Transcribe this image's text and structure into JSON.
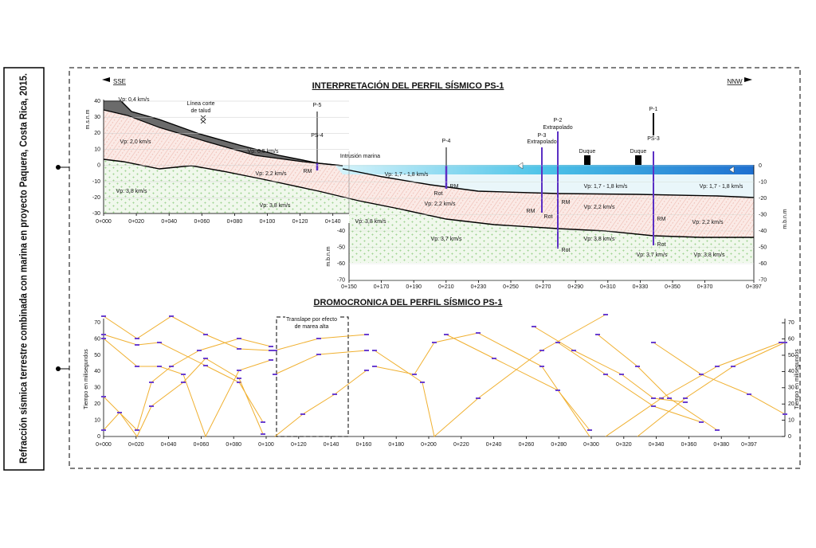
{
  "caption": "Refracción sísmica terrestre combinada con marina en proyecto Paquera, Costa Rica, 2015.",
  "profile": {
    "title": "INTERPRETACIÓN DEL PERFIL SÍSMICO PS-1",
    "direction_left": "SSE",
    "direction_right": "NNW",
    "y_label_land": "m.s.n.m",
    "y_label_marine_right": "m.b.n.m",
    "y_label_marine_left": "m.b.n.m",
    "land_yticks": [
      "40",
      "30",
      "20",
      "10",
      "0",
      "-10",
      "-20",
      "-30"
    ],
    "land_xticks": [
      "0+000",
      "0+020",
      "0+040",
      "0+060",
      "0+080",
      "0+100",
      "0+120",
      "0+140"
    ],
    "marine_yticks_right": [
      "0",
      "-10",
      "-20",
      "-30",
      "-40",
      "-50",
      "-60",
      "-70"
    ],
    "marine_yticks_left": [
      "-40",
      "-50",
      "-60",
      "-70"
    ],
    "marine_xticks": [
      "0+150",
      "0+170",
      "0+190",
      "0+210",
      "0+230",
      "0+250",
      "0+270",
      "0+290",
      "0+310",
      "0+330",
      "0+350",
      "0+370",
      "0+397"
    ],
    "annotations": [
      "Vp: 0,4 km/s",
      "Línea corte",
      "de talud",
      "Vp: 2,0 km/s",
      "Vp: 0,5 km/s",
      "Vp: 2,2 km/s",
      "Vp: 3,8 km/s",
      "Vp: 3,8 km/s",
      "Vp: 3,8 km/s",
      "Intrusión marina",
      "P-5",
      "PS-4",
      "RM",
      "Vp: 1,7 - 1,8 km/s",
      "RM",
      "Rot",
      "Vp: 2,2 km/s",
      "P-4",
      "Vp: 3,7 km/s",
      "P-2",
      "Extrapolado",
      "P-3",
      "Extrapolado",
      "RM",
      "Rot",
      "RM",
      "Rot",
      "Duque",
      "Duque",
      "P-1",
      "PS-3",
      "RM",
      "Rot",
      "Vp: 1,7 - 1,8 km/s",
      "Vp: 1,7 - 1,8 km/s",
      "Vp: 2,2 km/s",
      "Vp: 2,2 km/s",
      "Vp: 3,8 km/s",
      "Vp: 3,7 km/s",
      "Vp: 3,8 km/s"
    ]
  },
  "dromo": {
    "title": "DROMOCRONICA DEL PERFIL SÍSMICO PS-1",
    "note_line1": "Translape por efecto",
    "note_line2": "de marea alta",
    "y_label_left": "Tiempo en milisegundos",
    "y_label_right": "Tiempo en milisegundos",
    "yticks": [
      "0",
      "10",
      "20",
      "30",
      "40",
      "50",
      "60",
      "70"
    ],
    "xticks": [
      "0+000",
      "0+020",
      "0+040",
      "0+060",
      "0+080",
      "0+100",
      "0+120",
      "0+140",
      "0+160",
      "0+180",
      "0+200",
      "0+220",
      "0+240",
      "0+260",
      "0+280",
      "0+300",
      "0+320",
      "0+340",
      "0+360",
      "0+380",
      "0+397"
    ]
  }
}
